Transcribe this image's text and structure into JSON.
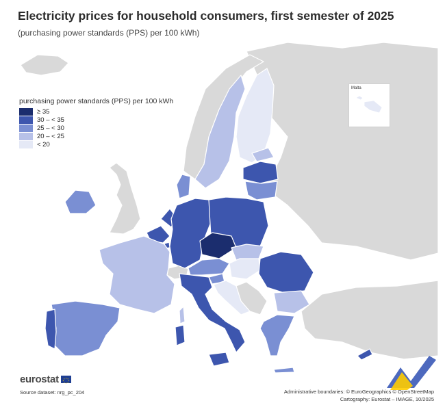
{
  "header": {
    "title": "Electricity prices for household consumers, first semester of 2025",
    "subtitle": "(purchasing power standards (PPS) per 100 kWh)"
  },
  "legend": {
    "title": "purchasing power standards (PPS) per 100 kWh",
    "classes": [
      {
        "label": "≥ 35",
        "color": "#1b2d6e"
      },
      {
        "label": "30 – < 35",
        "color": "#3d56ae"
      },
      {
        "label": "25 – < 30",
        "color": "#7a8fd3"
      },
      {
        "label": "20 – < 25",
        "color": "#b7c1e8"
      },
      {
        "label": "< 20",
        "color": "#e5e9f6"
      }
    ]
  },
  "inset": {
    "label": "Malta"
  },
  "footer": {
    "logo": "eurostat",
    "source": "Source dataset: nrg_pc_204",
    "boundaries": "Administrative boundaries: © EuroGeographics © OpenStreetMap",
    "cartography": "Cartography: Eurostat – IMAGE, 10/2025"
  },
  "colors": {
    "sea": "#ffffff",
    "non_eu": "#d9d9d9",
    "border": "#ffffff"
  }
}
